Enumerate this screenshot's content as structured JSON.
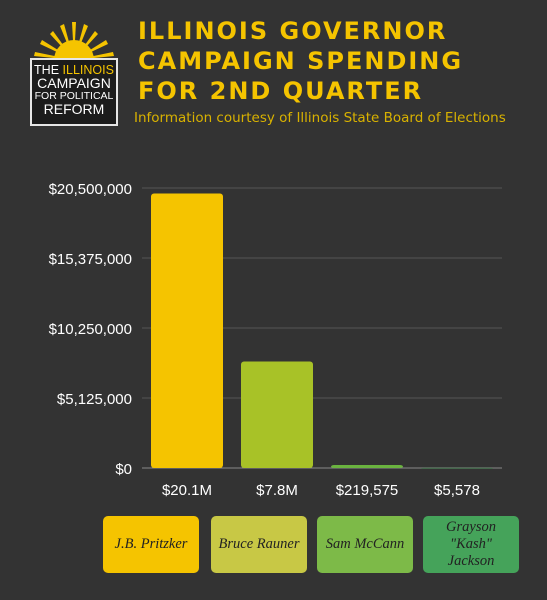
{
  "title_lines": [
    "ILLINOIS GOVERNOR",
    "CAMPAIGN SPENDING",
    "FOR 2ND QUARTER"
  ],
  "subtitle": "Information courtesy of Illinois State Board of Elections",
  "logo": {
    "line1_a": "THE",
    "line1_b": "ILLINOIS",
    "line2": "CAMPAIGN",
    "line3": "FOR POLITICAL",
    "line4": "REFORM"
  },
  "colors": {
    "background": "#333333",
    "title": "#f5c400",
    "pritzker": "#f5c400",
    "rauner": "#a8c227",
    "mccann": "#6ab33f",
    "jackson": "#45a35a"
  },
  "chart_data": {
    "type": "bar",
    "categories": [
      "J.B. Pritzker",
      "Bruce Rauner",
      "Sam McCann",
      "Grayson \"Kash\" Jackson"
    ],
    "values": [
      20100000,
      7800000,
      219575,
      5578
    ],
    "value_labels": [
      "$20.1M",
      "$7.8M",
      "$219,575",
      "$5,578"
    ],
    "bar_colors": [
      "#f5c400",
      "#a8c227",
      "#6ab33f",
      "#45a35a"
    ],
    "ylim": [
      0,
      20500000
    ],
    "yticks": [
      0,
      5125000,
      10250000,
      15375000,
      20500000
    ],
    "ytick_labels": [
      "$0",
      "$5,125,000",
      "$10,250,000",
      "$15,375,000",
      "$20,500,000"
    ],
    "grid": true,
    "legend_placement": "bottom"
  },
  "legend": [
    {
      "label": "J.B. Pritzker",
      "color": "#f5c400"
    },
    {
      "label": "Bruce Rauner",
      "color": "#c8c845"
    },
    {
      "label": "Sam McCann",
      "color": "#7dba48"
    },
    {
      "label": "Grayson \"Kash\" Jackson",
      "color": "#45a35a"
    }
  ]
}
